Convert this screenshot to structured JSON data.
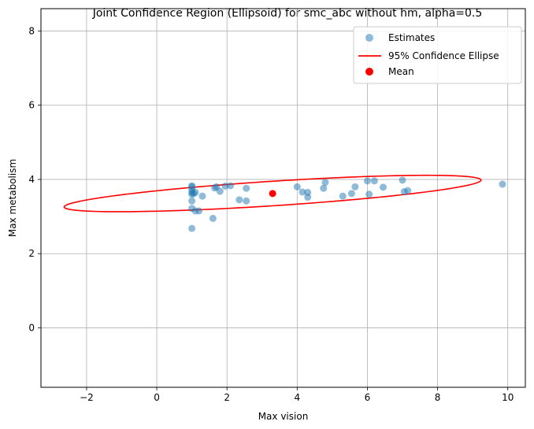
{
  "chart_data": {
    "type": "scatter",
    "title": "Joint Confidence Region (Ellipsoid) for smc_abc without hm, alpha=0.5",
    "xlabel": "Max vision",
    "ylabel": "Max metabolism",
    "xlim": [
      -3.3,
      10.5
    ],
    "ylim": [
      -1.6,
      8.6
    ],
    "xticks": [
      -2,
      0,
      2,
      4,
      6,
      8,
      10
    ],
    "yticks": [
      0,
      2,
      4,
      6,
      8
    ],
    "grid": true,
    "legend_position": "top-right",
    "series": [
      {
        "name": "Estimates",
        "kind": "scatter",
        "color": "#1f77b4",
        "alpha": 0.5,
        "points": [
          [
            1.0,
            2.68
          ],
          [
            1.0,
            3.22
          ],
          [
            1.0,
            3.42
          ],
          [
            1.0,
            3.6
          ],
          [
            1.0,
            3.65
          ],
          [
            1.0,
            3.72
          ],
          [
            1.0,
            3.8
          ],
          [
            1.0,
            3.83
          ],
          [
            1.05,
            3.62
          ],
          [
            1.1,
            3.15
          ],
          [
            1.1,
            3.65
          ],
          [
            1.2,
            3.15
          ],
          [
            1.3,
            3.55
          ],
          [
            1.6,
            2.95
          ],
          [
            1.65,
            3.77
          ],
          [
            1.7,
            3.8
          ],
          [
            1.8,
            3.68
          ],
          [
            1.95,
            3.82
          ],
          [
            2.1,
            3.83
          ],
          [
            2.35,
            3.45
          ],
          [
            2.55,
            3.42
          ],
          [
            2.55,
            3.76
          ],
          [
            4.0,
            3.8
          ],
          [
            4.15,
            3.66
          ],
          [
            4.3,
            3.65
          ],
          [
            4.3,
            3.52
          ],
          [
            4.75,
            3.76
          ],
          [
            4.8,
            3.92
          ],
          [
            5.3,
            3.55
          ],
          [
            5.55,
            3.62
          ],
          [
            5.65,
            3.8
          ],
          [
            6.0,
            3.96
          ],
          [
            6.05,
            3.6
          ],
          [
            6.2,
            3.96
          ],
          [
            6.45,
            3.79
          ],
          [
            7.0,
            3.98
          ],
          [
            7.05,
            3.67
          ],
          [
            7.15,
            3.7
          ],
          [
            9.85,
            3.87
          ]
        ]
      },
      {
        "name": "95% Confidence Ellipse",
        "kind": "ellipse",
        "color": "#ff0000",
        "center": [
          3.3,
          3.62
        ],
        "semi_major": 5.95,
        "semi_minor": 0.33,
        "angle_deg": 3.5
      },
      {
        "name": "Mean",
        "kind": "scatter",
        "color": "#ff0000",
        "alpha": 1,
        "points": [
          [
            3.3,
            3.62
          ]
        ]
      }
    ]
  }
}
